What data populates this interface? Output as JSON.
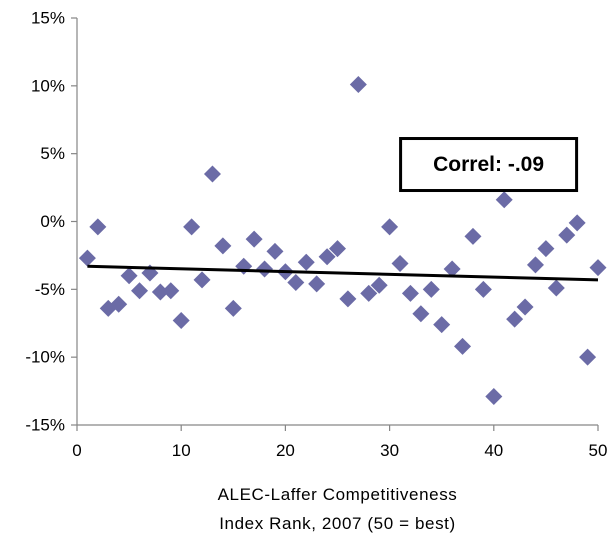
{
  "chart_data": {
    "type": "scatter",
    "title": "",
    "xlabel_lines": [
      "ALEC-Laffer Competitiveness",
      "Index Rank, 2007 (50 = best)"
    ],
    "ylabel": "",
    "xlim": [
      0,
      50
    ],
    "ylim": [
      -0.15,
      0.15
    ],
    "x_ticks": [
      0,
      10,
      20,
      30,
      40,
      50
    ],
    "y_ticks": [
      {
        "value": 0.15,
        "label": "15%"
      },
      {
        "value": 0.1,
        "label": "10%"
      },
      {
        "value": 0.05,
        "label": "5%"
      },
      {
        "value": 0.0,
        "label": "0%"
      },
      {
        "value": -0.05,
        "label": "-5%"
      },
      {
        "value": -0.1,
        "label": "-10%"
      },
      {
        "value": -0.15,
        "label": "-15%"
      }
    ],
    "grid": false,
    "legend": "none",
    "marker": {
      "shape": "diamond",
      "color": "#6b6ba6"
    },
    "trendline": {
      "x": [
        1,
        50
      ],
      "y": [
        -0.033,
        -0.043
      ],
      "color": "#000000"
    },
    "annotation": {
      "text": "Correl: -.09",
      "x": 39.5,
      "y": 0.042
    },
    "points": [
      {
        "x": 1,
        "y": -0.027
      },
      {
        "x": 2,
        "y": -0.004
      },
      {
        "x": 3,
        "y": -0.064
      },
      {
        "x": 4,
        "y": -0.061
      },
      {
        "x": 5,
        "y": -0.04
      },
      {
        "x": 6,
        "y": -0.051
      },
      {
        "x": 7,
        "y": -0.038
      },
      {
        "x": 8,
        "y": -0.052
      },
      {
        "x": 9,
        "y": -0.051
      },
      {
        "x": 10,
        "y": -0.073
      },
      {
        "x": 11,
        "y": -0.004
      },
      {
        "x": 12,
        "y": -0.043
      },
      {
        "x": 13,
        "y": 0.035
      },
      {
        "x": 14,
        "y": -0.018
      },
      {
        "x": 15,
        "y": -0.064
      },
      {
        "x": 16,
        "y": -0.033
      },
      {
        "x": 17,
        "y": -0.013
      },
      {
        "x": 18,
        "y": -0.035
      },
      {
        "x": 19,
        "y": -0.022
      },
      {
        "x": 20,
        "y": -0.037
      },
      {
        "x": 21,
        "y": -0.045
      },
      {
        "x": 22,
        "y": -0.03
      },
      {
        "x": 23,
        "y": -0.046
      },
      {
        "x": 24,
        "y": -0.026
      },
      {
        "x": 25,
        "y": -0.02
      },
      {
        "x": 26,
        "y": -0.057
      },
      {
        "x": 27,
        "y": 0.101
      },
      {
        "x": 28,
        "y": -0.053
      },
      {
        "x": 29,
        "y": -0.047
      },
      {
        "x": 30,
        "y": -0.004
      },
      {
        "x": 31,
        "y": -0.031
      },
      {
        "x": 32,
        "y": -0.053
      },
      {
        "x": 33,
        "y": -0.068
      },
      {
        "x": 34,
        "y": -0.05
      },
      {
        "x": 35,
        "y": -0.076
      },
      {
        "x": 36,
        "y": -0.035
      },
      {
        "x": 37,
        "y": -0.092
      },
      {
        "x": 38,
        "y": -0.011
      },
      {
        "x": 39,
        "y": -0.05
      },
      {
        "x": 40,
        "y": -0.129
      },
      {
        "x": 41,
        "y": 0.016
      },
      {
        "x": 42,
        "y": -0.072
      },
      {
        "x": 43,
        "y": -0.063
      },
      {
        "x": 44,
        "y": -0.032
      },
      {
        "x": 45,
        "y": -0.02
      },
      {
        "x": 46,
        "y": -0.049
      },
      {
        "x": 47,
        "y": -0.01
      },
      {
        "x": 48,
        "y": -0.001
      },
      {
        "x": 49,
        "y": -0.1
      },
      {
        "x": 50,
        "y": -0.034
      }
    ]
  }
}
